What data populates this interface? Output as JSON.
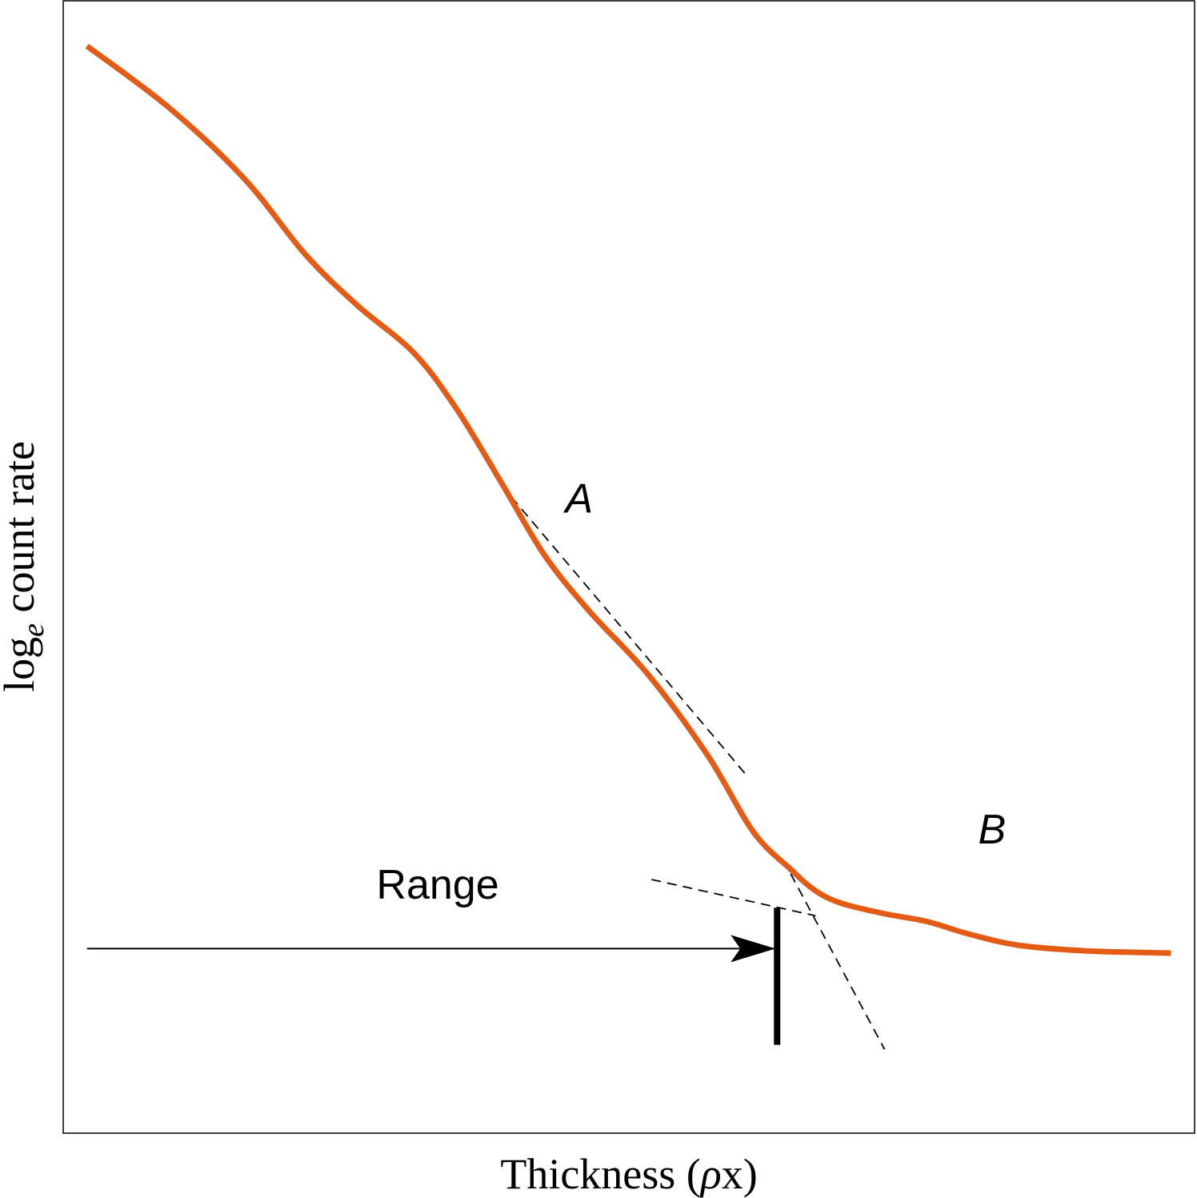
{
  "chart_data": {
    "type": "line",
    "xlabel": {
      "main": "Thickness (",
      "rho": "ρ",
      "tail": "x)"
    },
    "ylabel": {
      "base": "log",
      "subscript": "e",
      "rest": " count rate"
    },
    "axis_ticks": "none",
    "grid": false,
    "xlim": [
      0,
      100
    ],
    "ylim": [
      0,
      100
    ],
    "series": [
      {
        "color": "#e35b14",
        "x": [
          2.1,
          9.3,
          16.0,
          21.4,
          26.0,
          31.0,
          34.8,
          38.7,
          42.5,
          46.5,
          51.7,
          57.0,
          61.0,
          64.3,
          66.5,
          68.8,
          72.5,
          76.3,
          80.0,
          84.4,
          90.4,
          97.9
        ],
        "y": [
          96.0,
          90.6,
          84.3,
          77.6,
          73.1,
          68.9,
          63.9,
          57.5,
          51.1,
          46.1,
          40.5,
          33.3,
          26.6,
          23.3,
          21.4,
          20.3,
          19.4,
          18.7,
          17.6,
          16.6,
          16.1,
          15.9
        ]
      }
    ],
    "tangents": [
      {
        "x": [
          39.6,
          60.4
        ],
        "y": [
          56.2,
          31.6
        ]
      },
      {
        "x": [
          52.0,
          66.5
        ],
        "y": [
          22.4,
          19.2
        ]
      },
      {
        "x": [
          64.3,
          72.6
        ],
        "y": [
          22.9,
          7.4
        ]
      }
    ],
    "annotations": [
      {
        "text": "A",
        "x": 45.6,
        "y": 54.8,
        "style": "italic"
      },
      {
        "text": "B",
        "x": 82.1,
        "y": 25.6,
        "style": "italic"
      },
      {
        "text": "Range",
        "x": 33.1,
        "y": 20.7
      }
    ],
    "range_marker": {
      "arrow_from_x": 2.1,
      "arrow_to_x": 63.1,
      "y": 16.3,
      "bar_x": 63.1,
      "bar_y": [
        7.8,
        19.9
      ]
    }
  }
}
